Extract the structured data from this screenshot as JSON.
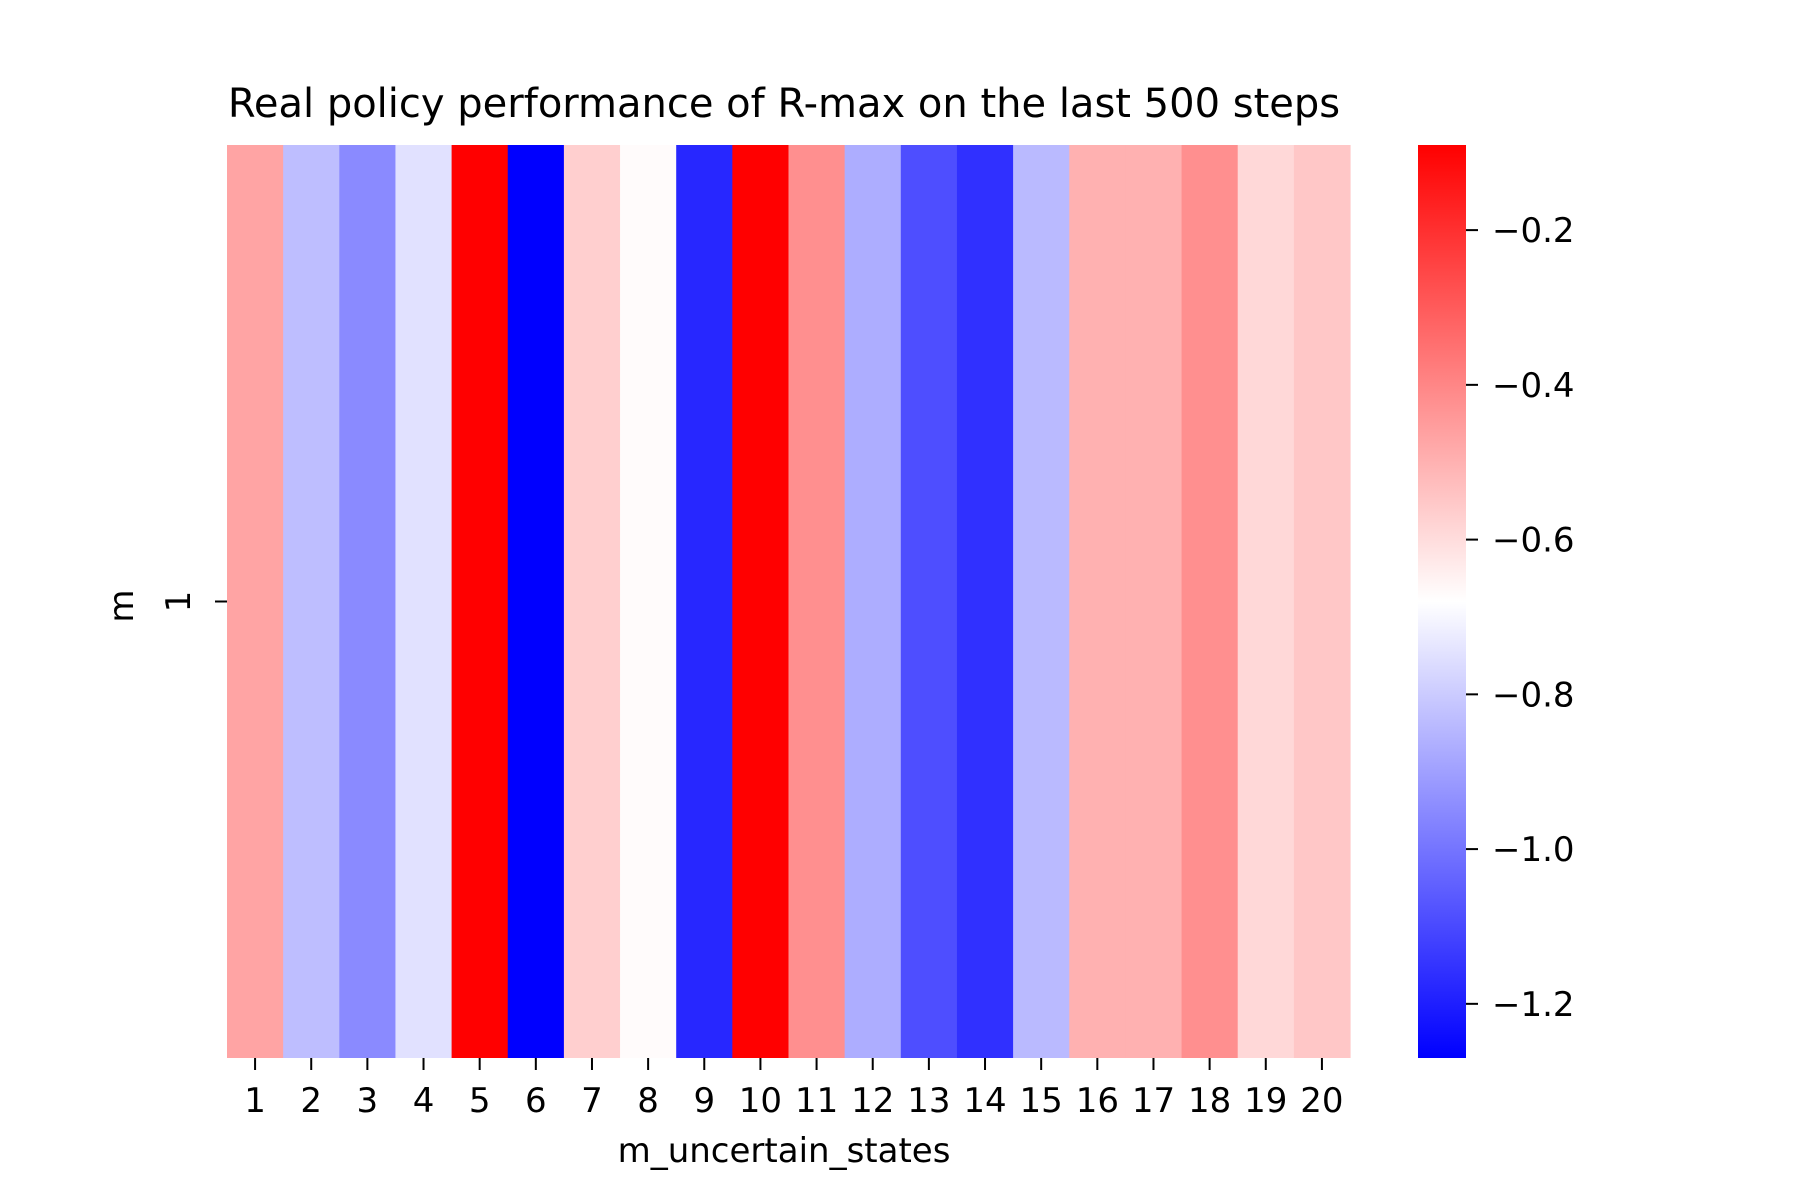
{
  "chart_data": {
    "type": "heatmap",
    "title": "Real policy performance of R-max on the last 500 steps",
    "xlabel": "m_uncertain_states",
    "ylabel": "m",
    "categories": [
      "1",
      "2",
      "3",
      "4",
      "5",
      "6",
      "7",
      "8",
      "9",
      "10",
      "11",
      "12",
      "13",
      "14",
      "15",
      "16",
      "17",
      "18",
      "19",
      "20"
    ],
    "rows": [
      "1"
    ],
    "values": [
      [
        -0.47,
        -0.83,
        -0.95,
        -0.75,
        -0.09,
        -1.27,
        -0.57,
        -0.67,
        -1.18,
        -0.09,
        -0.42,
        -0.87,
        -1.09,
        -1.16,
        -0.84,
        -0.5,
        -0.5,
        -0.42,
        -0.59,
        -0.55
      ]
    ],
    "colorbar": {
      "vmin": -1.27,
      "vmax": -0.09,
      "ticks": [
        -0.2,
        -0.4,
        -0.6,
        -0.8,
        -1.0,
        -1.2
      ],
      "tick_labels": [
        "−0.2",
        "−0.4",
        "−0.6",
        "−0.8",
        "−1.0",
        "−1.2"
      ]
    },
    "colormap": {
      "low": "#0000ff",
      "mid": "#ffffff",
      "high": "#ff0000"
    },
    "grid": false,
    "legend": "colorbar-right"
  }
}
